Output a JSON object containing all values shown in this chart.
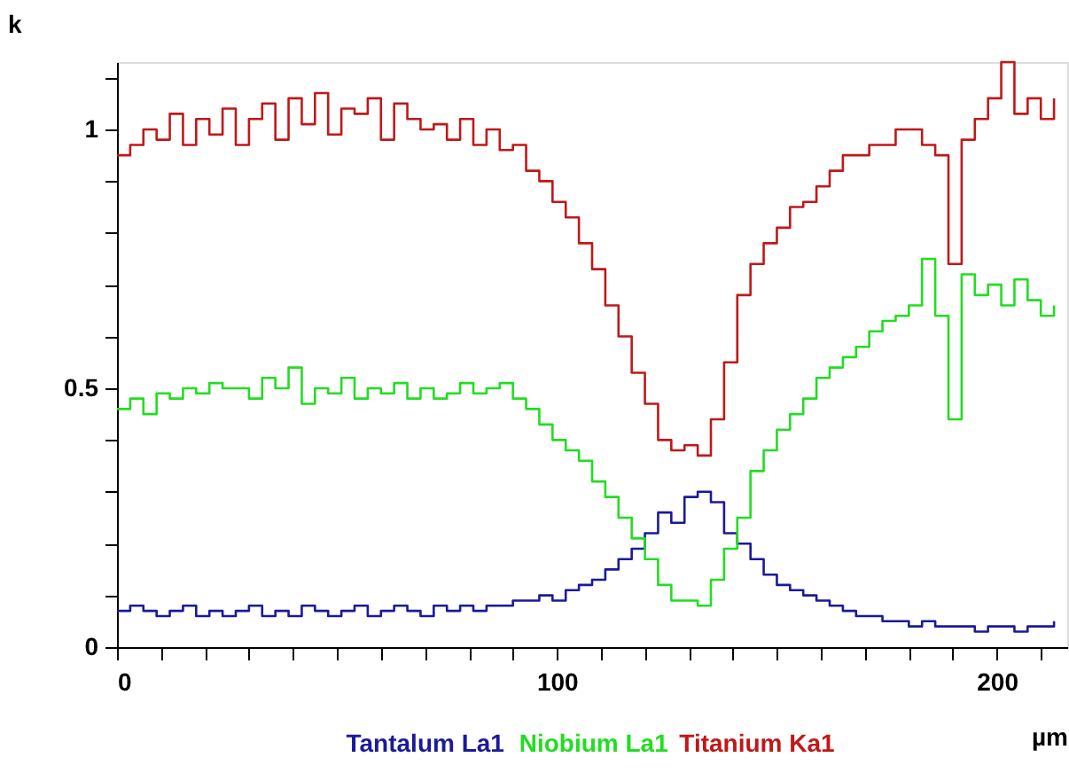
{
  "chart_data": {
    "type": "step",
    "xlabel": "µm",
    "ylabel": "k",
    "legend": "bottom",
    "grid": false,
    "marker": "none",
    "line_style": "solid",
    "xlim": [
      0,
      216
    ],
    "ylim": [
      0,
      1.13
    ],
    "xticks": [
      0,
      {
        "value": 10,
        "label": null
      },
      {
        "value": 20,
        "label": null
      },
      {
        "value": 30,
        "label": null
      },
      {
        "value": 40,
        "label": null
      },
      {
        "value": 50,
        "label": null
      },
      {
        "value": 60,
        "label": null
      },
      {
        "value": 70,
        "label": null
      },
      {
        "value": 80,
        "label": null
      },
      {
        "value": 90,
        "label": null
      },
      100,
      {
        "value": 110,
        "label": null
      },
      {
        "value": 120,
        "label": null
      },
      {
        "value": 130,
        "label": null
      },
      {
        "value": 140,
        "label": null
      },
      {
        "value": 150,
        "label": null
      },
      {
        "value": 160,
        "label": null
      },
      {
        "value": 170,
        "label": null
      },
      {
        "value": 180,
        "label": null
      },
      {
        "value": 190,
        "label": null
      },
      200,
      {
        "value": 210,
        "label": null
      }
    ],
    "yticks": [
      0,
      {
        "value": 0.1,
        "label": null
      },
      {
        "value": 0.2,
        "label": null
      },
      {
        "value": 0.3,
        "label": null
      },
      {
        "value": 0.4,
        "label": null
      },
      0.5,
      {
        "value": 0.6,
        "label": null
      },
      {
        "value": 0.7,
        "label": null
      },
      {
        "value": 0.8,
        "label": null
      },
      {
        "value": 0.9,
        "label": null
      },
      1,
      {
        "value": 1.1,
        "label": null
      }
    ],
    "x": [
      0,
      3,
      6,
      9,
      12,
      15,
      18,
      21,
      24,
      27,
      30,
      33,
      36,
      39,
      42,
      45,
      48,
      51,
      54,
      57,
      60,
      63,
      66,
      69,
      72,
      75,
      78,
      81,
      84,
      87,
      90,
      93,
      96,
      99,
      102,
      105,
      108,
      111,
      114,
      117,
      120,
      123,
      126,
      129,
      132,
      135,
      138,
      141,
      144,
      147,
      150,
      153,
      156,
      159,
      162,
      165,
      168,
      171,
      174,
      177,
      180,
      183,
      186,
      189,
      192,
      195,
      198,
      201,
      204,
      207,
      210,
      213
    ],
    "series": [
      {
        "name": "Tantalum La1",
        "color": "#1a1a9a",
        "values": [
          0.07,
          0.08,
          0.07,
          0.06,
          0.07,
          0.08,
          0.06,
          0.07,
          0.06,
          0.07,
          0.08,
          0.06,
          0.07,
          0.06,
          0.08,
          0.07,
          0.06,
          0.07,
          0.08,
          0.06,
          0.07,
          0.08,
          0.07,
          0.06,
          0.08,
          0.07,
          0.08,
          0.07,
          0.08,
          0.08,
          0.09,
          0.09,
          0.1,
          0.09,
          0.11,
          0.12,
          0.13,
          0.15,
          0.17,
          0.19,
          0.22,
          0.26,
          0.24,
          0.29,
          0.3,
          0.28,
          0.22,
          0.2,
          0.17,
          0.14,
          0.12,
          0.11,
          0.1,
          0.09,
          0.08,
          0.07,
          0.06,
          0.06,
          0.05,
          0.05,
          0.04,
          0.05,
          0.04,
          0.04,
          0.04,
          0.03,
          0.04,
          0.04,
          0.03,
          0.04,
          0.04,
          0.05
        ]
      },
      {
        "name": "Niobium La1",
        "color": "#22dd22",
        "values": [
          0.46,
          0.48,
          0.45,
          0.49,
          0.48,
          0.5,
          0.49,
          0.51,
          0.5,
          0.5,
          0.48,
          0.52,
          0.5,
          0.54,
          0.47,
          0.5,
          0.49,
          0.52,
          0.48,
          0.5,
          0.49,
          0.51,
          0.48,
          0.5,
          0.48,
          0.49,
          0.51,
          0.49,
          0.5,
          0.51,
          0.48,
          0.46,
          0.43,
          0.4,
          0.38,
          0.36,
          0.32,
          0.29,
          0.25,
          0.21,
          0.17,
          0.12,
          0.09,
          0.09,
          0.08,
          0.13,
          0.19,
          0.25,
          0.34,
          0.38,
          0.42,
          0.45,
          0.48,
          0.52,
          0.54,
          0.56,
          0.58,
          0.61,
          0.63,
          0.64,
          0.66,
          0.75,
          0.64,
          0.44,
          0.72,
          0.68,
          0.7,
          0.66,
          0.71,
          0.67,
          0.64,
          0.66
        ]
      },
      {
        "name": "Titanium Ka1",
        "color": "#c01818",
        "values": [
          0.95,
          0.97,
          1.0,
          0.98,
          1.03,
          0.97,
          1.02,
          0.99,
          1.04,
          0.97,
          1.02,
          1.05,
          0.98,
          1.06,
          1.01,
          1.07,
          0.99,
          1.04,
          1.03,
          1.06,
          0.98,
          1.05,
          1.02,
          1.0,
          1.01,
          0.98,
          1.02,
          0.97,
          1.0,
          0.96,
          0.97,
          0.92,
          0.9,
          0.86,
          0.83,
          0.78,
          0.73,
          0.66,
          0.6,
          0.53,
          0.47,
          0.4,
          0.38,
          0.39,
          0.37,
          0.44,
          0.55,
          0.68,
          0.74,
          0.78,
          0.81,
          0.85,
          0.86,
          0.89,
          0.92,
          0.95,
          0.95,
          0.97,
          0.97,
          1.0,
          1.0,
          0.97,
          0.95,
          0.74,
          0.98,
          1.02,
          1.06,
          1.13,
          1.03,
          1.06,
          1.02,
          1.06
        ]
      }
    ]
  }
}
